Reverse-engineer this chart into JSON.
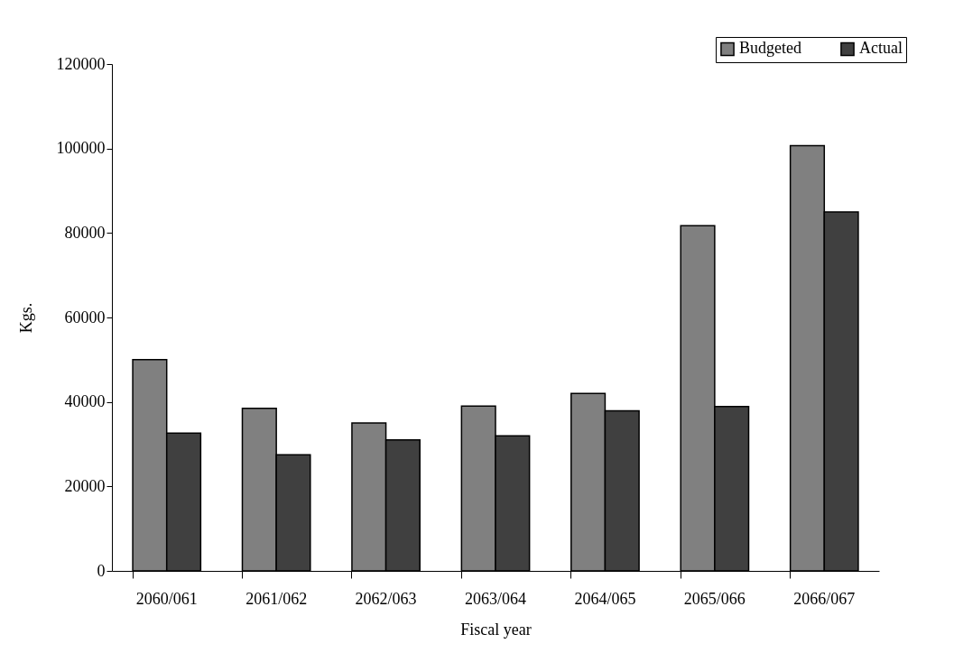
{
  "chart_data": {
    "type": "bar",
    "xlabel": "Fiscal year",
    "ylabel": "Kgs.",
    "categories": [
      "2060/061",
      "2061/062",
      "2062/063",
      "2063/064",
      "2064/065",
      "2065/066",
      "2066/067"
    ],
    "series": [
      {
        "name": "Budgeted",
        "color": "#808080",
        "values": [
          50000,
          38500,
          35000,
          39000,
          42000,
          81700,
          100700
        ]
      },
      {
        "name": "Actual",
        "color": "#404040",
        "values": [
          32600,
          27500,
          31000,
          32000,
          37900,
          38900,
          85000
        ]
      }
    ],
    "ylim": [
      0,
      120000
    ],
    "yticks": [
      0,
      20000,
      40000,
      60000,
      80000,
      100000,
      120000
    ],
    "grid": false,
    "legend": "top right"
  }
}
